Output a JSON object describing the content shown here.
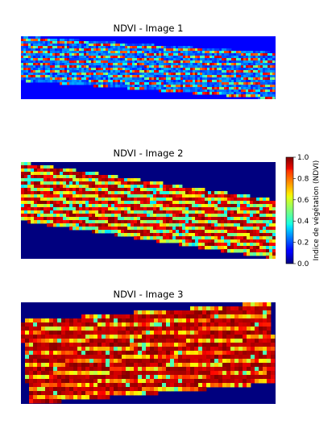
{
  "chart_data": [
    {
      "type": "heatmap",
      "title": "NDVI - Image 1",
      "colormap": "jet",
      "value_range": [
        0.0,
        1.0
      ],
      "background_value": 0.0,
      "description_values": {
        "rows": "many thin crop rows",
        "row_ndvi_typical": 0.75,
        "gap_ndvi_typical": 0.15
      }
    },
    {
      "type": "heatmap",
      "title": "NDVI - Image 2",
      "colormap": "jet",
      "value_range": [
        0.0,
        1.0
      ],
      "background_value": 0.0,
      "description_values": {
        "row_ndvi_typical": 0.85,
        "gap_ndvi_typical": 0.4
      }
    },
    {
      "type": "heatmap",
      "title": "NDVI - Image 3",
      "colormap": "jet",
      "value_range": [
        0.0,
        1.0
      ],
      "background_value": 0.0,
      "description_values": {
        "row_ndvi_typical": 0.9,
        "gap_ndvi_typical": 0.55
      }
    }
  ],
  "colorbar": {
    "label": "Indice de végétation (NDVI)",
    "ticks": [
      "0.0",
      "0.2",
      "0.4",
      "0.6",
      "0.8",
      "1.0"
    ],
    "tick_values": [
      0.0,
      0.2,
      0.4,
      0.6,
      0.8,
      1.0
    ],
    "colormap": "jet"
  },
  "colors": {
    "background": "#00007f"
  }
}
